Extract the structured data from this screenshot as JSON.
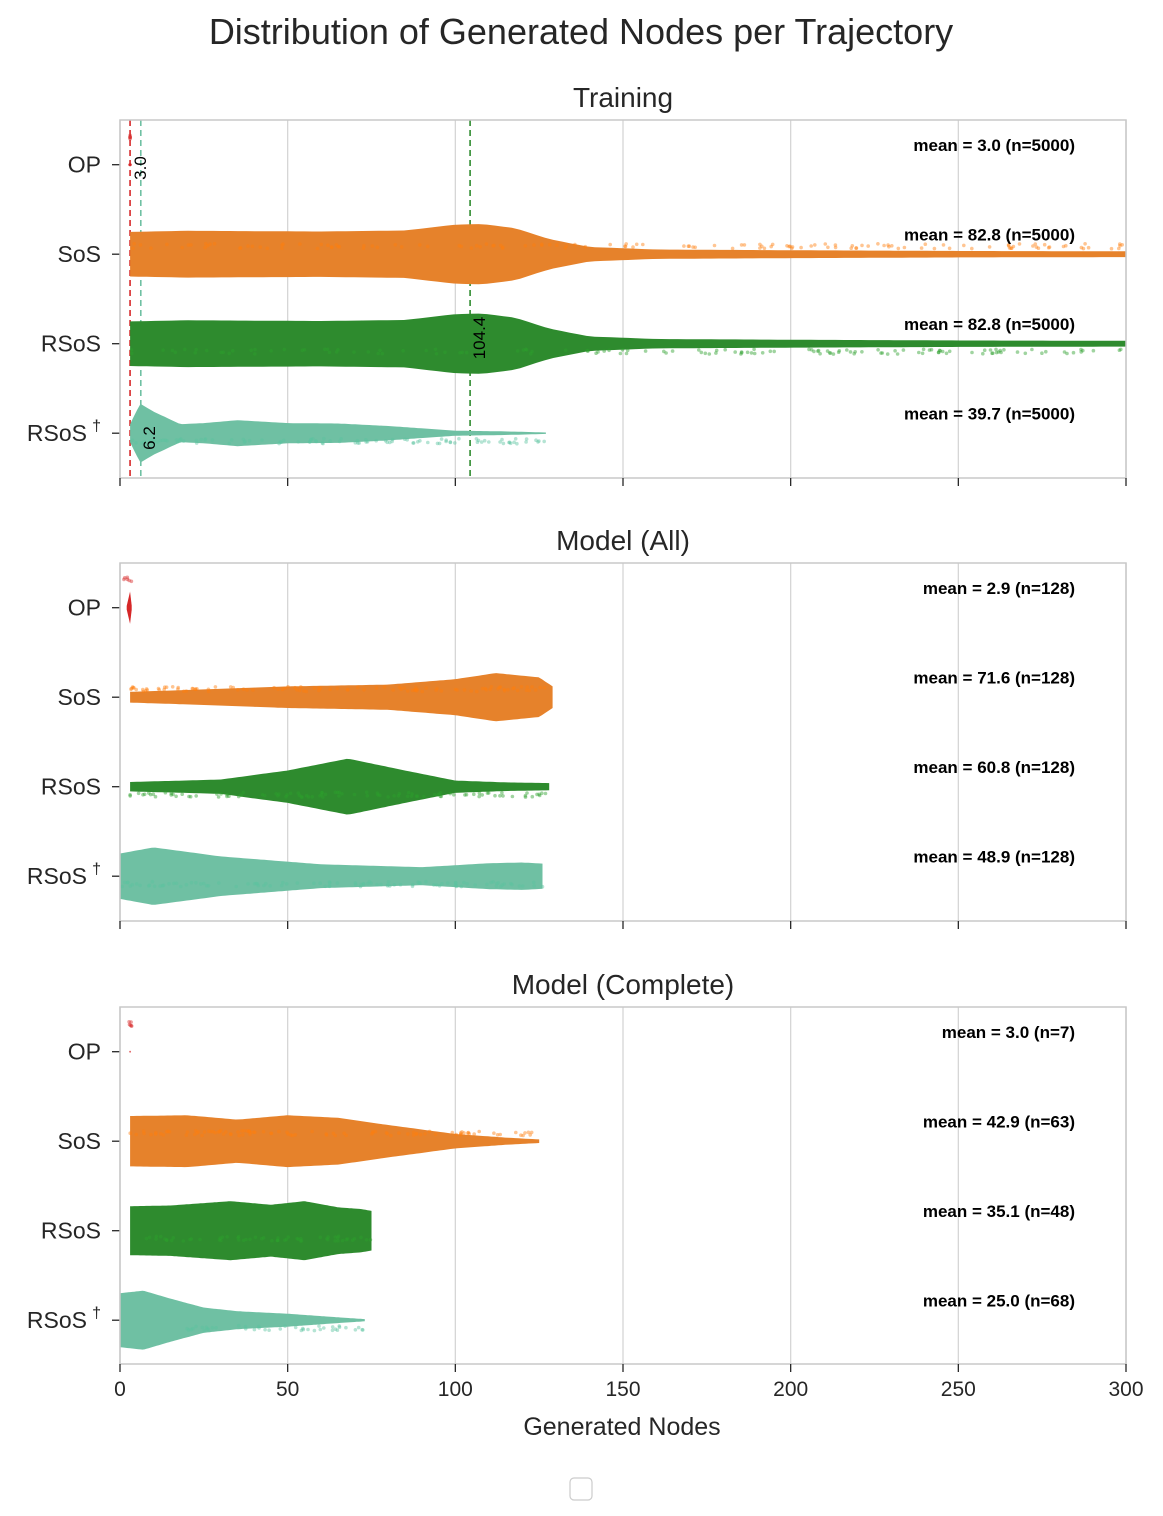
{
  "chart_data": {
    "type": "violin",
    "title": "Distribution of Generated Nodes per Trajectory",
    "xlabel": "Generated Nodes",
    "xlim": [
      0,
      300
    ],
    "x_ticks": [
      0,
      50,
      100,
      150,
      200,
      250,
      300
    ],
    "x_tick_labels": [
      "0",
      "50",
      "100",
      "150",
      "200",
      "250",
      "300"
    ],
    "grid": true,
    "legend": "bottom-center (empty)",
    "categories": [
      "OP",
      "SoS",
      "RSoS",
      "RSoS"
    ],
    "category_superscripts": [
      "",
      "",
      "",
      "†"
    ],
    "colors": {
      "OP": "#d62728",
      "SoS": "#e6822b",
      "RSoS": "#2e8b2e",
      "RSoS†": "#6fc0a3"
    },
    "point_colors": {
      "OP": "#d62728",
      "SoS": "#ff7f0e",
      "RSoS": "#2ca02c",
      "RSoS†": "#5cc4a0"
    },
    "panels": [
      {
        "title": "Training",
        "series": [
          {
            "name": "OP",
            "mean_label": "mean = 3.0 (n=5000)",
            "mean": 3.0,
            "n": 5000,
            "min": 3,
            "max": 3,
            "profile": [
              [
                2.5,
                0.02
              ],
              [
                3,
                0.05
              ],
              [
                3.5,
                0.02
              ]
            ]
          },
          {
            "name": "SoS",
            "mean_label": "mean = 82.8 (n=5000)",
            "mean": 82.8,
            "n": 5000,
            "min": 3,
            "max": 300,
            "profile": [
              [
                3,
                0.62
              ],
              [
                20,
                0.65
              ],
              [
                60,
                0.63
              ],
              [
                85,
                0.66
              ],
              [
                100,
                0.82
              ],
              [
                108,
                0.84
              ],
              [
                118,
                0.72
              ],
              [
                128,
                0.42
              ],
              [
                140,
                0.2
              ],
              [
                160,
                0.13
              ],
              [
                200,
                0.11
              ],
              [
                250,
                0.09
              ],
              [
                300,
                0.08
              ]
            ],
            "points_range": [
              3,
              300
            ]
          },
          {
            "name": "RSoS",
            "mean_label": "mean = 82.8 (n=5000)",
            "mean": 82.8,
            "n": 5000,
            "min": 3,
            "max": 300,
            "profile": [
              [
                3,
                0.62
              ],
              [
                20,
                0.65
              ],
              [
                60,
                0.63
              ],
              [
                85,
                0.66
              ],
              [
                100,
                0.82
              ],
              [
                108,
                0.84
              ],
              [
                118,
                0.72
              ],
              [
                128,
                0.42
              ],
              [
                140,
                0.2
              ],
              [
                160,
                0.13
              ],
              [
                200,
                0.11
              ],
              [
                250,
                0.09
              ],
              [
                300,
                0.08
              ]
            ],
            "points_range": [
              3,
              300
            ]
          },
          {
            "name": "RSoS†",
            "mean_label": "mean = 39.7 (n=5000)",
            "mean": 39.7,
            "n": 5000,
            "min": 3,
            "max": 127,
            "profile": [
              [
                3,
                0.25
              ],
              [
                6,
                0.82
              ],
              [
                10,
                0.6
              ],
              [
                18,
                0.25
              ],
              [
                25,
                0.28
              ],
              [
                35,
                0.36
              ],
              [
                50,
                0.28
              ],
              [
                65,
                0.27
              ],
              [
                80,
                0.2
              ],
              [
                100,
                0.07
              ],
              [
                115,
                0.05
              ],
              [
                127,
                0.02
              ]
            ],
            "points_range": [
              3,
              127
            ]
          }
        ],
        "reference_lines": [
          {
            "series": "OP",
            "value": 3.0,
            "label": "3.0"
          },
          {
            "series": "RSoS†",
            "value": 6.2,
            "label": "6.2"
          },
          {
            "series": "RSoS",
            "value": 104.4,
            "label": "104.4"
          }
        ]
      },
      {
        "title": "Model (All)",
        "series": [
          {
            "name": "OP",
            "mean_label": "mean = 2.9 (n=128)",
            "mean": 2.9,
            "n": 128,
            "min": 2,
            "max": 3,
            "profile": [
              [
                2,
                0.05
              ],
              [
                3,
                0.45
              ],
              [
                3.5,
                0.05
              ]
            ],
            "points_range": [
              1,
              4
            ]
          },
          {
            "name": "SoS",
            "mean_label": "mean = 71.6 (n=128)",
            "mean": 71.6,
            "n": 128,
            "min": 3,
            "max": 129,
            "profile": [
              [
                3,
                0.15
              ],
              [
                20,
                0.2
              ],
              [
                50,
                0.3
              ],
              [
                80,
                0.35
              ],
              [
                100,
                0.5
              ],
              [
                112,
                0.67
              ],
              [
                125,
                0.55
              ],
              [
                129,
                0.3
              ]
            ],
            "points_range": [
              3,
              129
            ]
          },
          {
            "name": "RSoS",
            "mean_label": "mean = 60.8 (n=128)",
            "mean": 60.8,
            "n": 128,
            "min": 3,
            "max": 128,
            "profile": [
              [
                3,
                0.13
              ],
              [
                30,
                0.2
              ],
              [
                50,
                0.45
              ],
              [
                68,
                0.78
              ],
              [
                85,
                0.45
              ],
              [
                100,
                0.17
              ],
              [
                115,
                0.12
              ],
              [
                128,
                0.1
              ]
            ],
            "points_range": [
              3,
              128
            ]
          },
          {
            "name": "RSoS†",
            "mean_label": "mean = 48.9 (n=128)",
            "mean": 48.9,
            "n": 128,
            "min": 0,
            "max": 126,
            "profile": [
              [
                0,
                0.63
              ],
              [
                10,
                0.8
              ],
              [
                30,
                0.55
              ],
              [
                60,
                0.33
              ],
              [
                90,
                0.25
              ],
              [
                110,
                0.36
              ],
              [
                120,
                0.38
              ],
              [
                126,
                0.35
              ]
            ],
            "points_range": [
              0,
              126
            ]
          }
        ]
      },
      {
        "title": "Model (Complete)",
        "series": [
          {
            "name": "OP",
            "mean_label": "mean = 3.0 (n=7)",
            "mean": 3.0,
            "n": 7,
            "min": 3,
            "max": 3,
            "profile": [
              [
                2.8,
                0.01
              ],
              [
                3,
                0.03
              ],
              [
                3.2,
                0.01
              ]
            ],
            "points_range": [
              2.5,
              3.5
            ]
          },
          {
            "name": "SoS",
            "mean_label": "mean = 42.9 (n=63)",
            "mean": 42.9,
            "n": 63,
            "min": 3,
            "max": 125,
            "profile": [
              [
                3,
                0.7
              ],
              [
                20,
                0.72
              ],
              [
                35,
                0.6
              ],
              [
                50,
                0.72
              ],
              [
                65,
                0.65
              ],
              [
                80,
                0.45
              ],
              [
                100,
                0.2
              ],
              [
                115,
                0.1
              ],
              [
                125,
                0.05
              ]
            ],
            "points_range": [
              3,
              125
            ]
          },
          {
            "name": "RSoS",
            "mean_label": "mean = 35.1 (n=48)",
            "mean": 35.1,
            "n": 48,
            "min": 3,
            "max": 75,
            "profile": [
              [
                3,
                0.68
              ],
              [
                15,
                0.7
              ],
              [
                33,
                0.82
              ],
              [
                45,
                0.72
              ],
              [
                55,
                0.82
              ],
              [
                65,
                0.65
              ],
              [
                72,
                0.6
              ],
              [
                75,
                0.55
              ]
            ],
            "points_range": [
              3,
              75
            ]
          },
          {
            "name": "RSoS†",
            "mean_label": "mean = 25.0 (n=68)",
            "mean": 25.0,
            "n": 68,
            "min": 0,
            "max": 73,
            "profile": [
              [
                0,
                0.75
              ],
              [
                7,
                0.82
              ],
              [
                15,
                0.6
              ],
              [
                25,
                0.35
              ],
              [
                35,
                0.25
              ],
              [
                50,
                0.18
              ],
              [
                65,
                0.08
              ],
              [
                73,
                0.03
              ]
            ],
            "points_range": [
              20,
              73
            ]
          }
        ]
      }
    ]
  }
}
